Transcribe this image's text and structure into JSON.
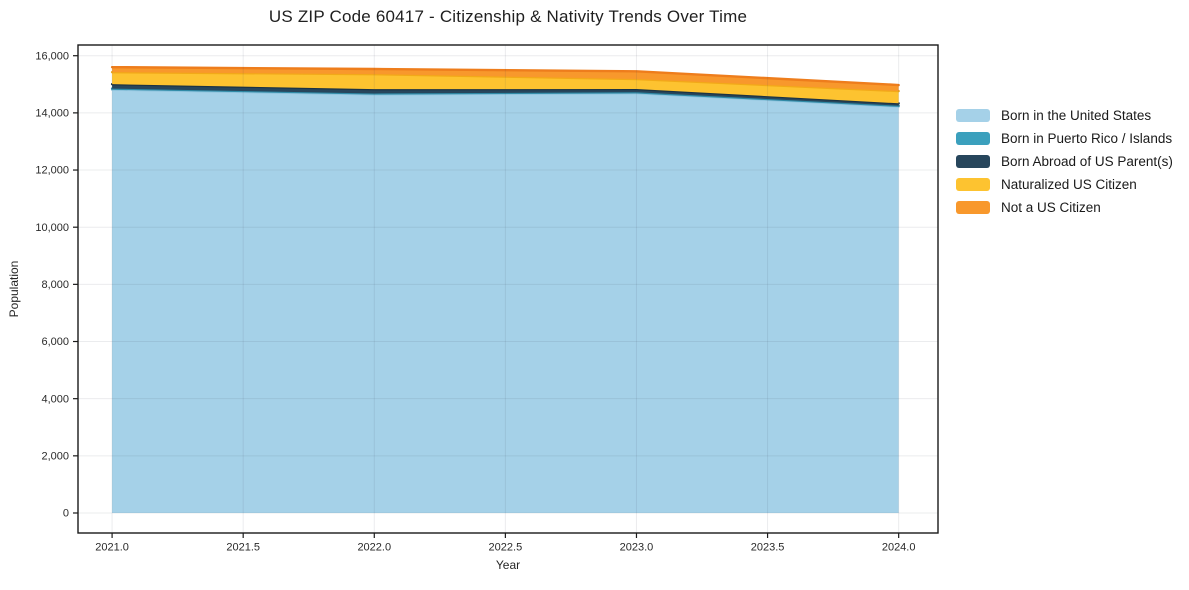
{
  "chart_data": {
    "type": "area",
    "stacked": true,
    "title": "US ZIP Code 60417 - Citizenship & Nativity Trends Over Time",
    "xlabel": "Year",
    "ylabel": "Population",
    "x": [
      2021,
      2022,
      2023,
      2024
    ],
    "series": [
      {
        "name": "Born in the United States",
        "color": "#a5d1e8",
        "line_color": "#8ec3dd",
        "values": [
          14815,
          14650,
          14690,
          14225
        ]
      },
      {
        "name": "Born in Puerto Rico / Islands",
        "color": "#3ba0bd",
        "line_color": "#2f8aa6",
        "values": [
          35,
          30,
          30,
          25
        ]
      },
      {
        "name": "Born Abroad of US Parent(s)",
        "color": "#27465c",
        "line_color": "#1c3344",
        "values": [
          155,
          150,
          115,
          85
        ]
      },
      {
        "name": "Naturalized US Citizen",
        "color": "#fdc330",
        "line_color": "#f2a918",
        "values": [
          420,
          525,
          350,
          430
        ]
      },
      {
        "name": "Not a US Citizen",
        "color": "#f8982c",
        "line_color": "#ee7d1c",
        "values": [
          175,
          180,
          270,
          210
        ]
      }
    ],
    "x_ticks": {
      "values": [
        2021,
        2021.5,
        2022,
        2022.5,
        2023,
        2023.5,
        2024
      ],
      "labels": [
        "2021.0",
        "2021.5",
        "2022.0",
        "2022.5",
        "2023.0",
        "2023.5",
        "2024.0"
      ]
    },
    "y_ticks": {
      "values": [
        0,
        2000,
        4000,
        6000,
        8000,
        10000,
        12000,
        14000,
        16000
      ],
      "labels": [
        "0",
        "2,000",
        "4,000",
        "6,000",
        "8,000",
        "10,000",
        "12,000",
        "14,000",
        "16,000"
      ]
    },
    "xlim": [
      2020.87,
      2024.15
    ],
    "ylim": [
      -700,
      16375
    ],
    "grid": true,
    "legend_position": "right",
    "axis_color": "#1a1a1a",
    "tick_label_color": "#2a2a2a",
    "grid_color": "rgba(60,70,85,0.10)"
  }
}
